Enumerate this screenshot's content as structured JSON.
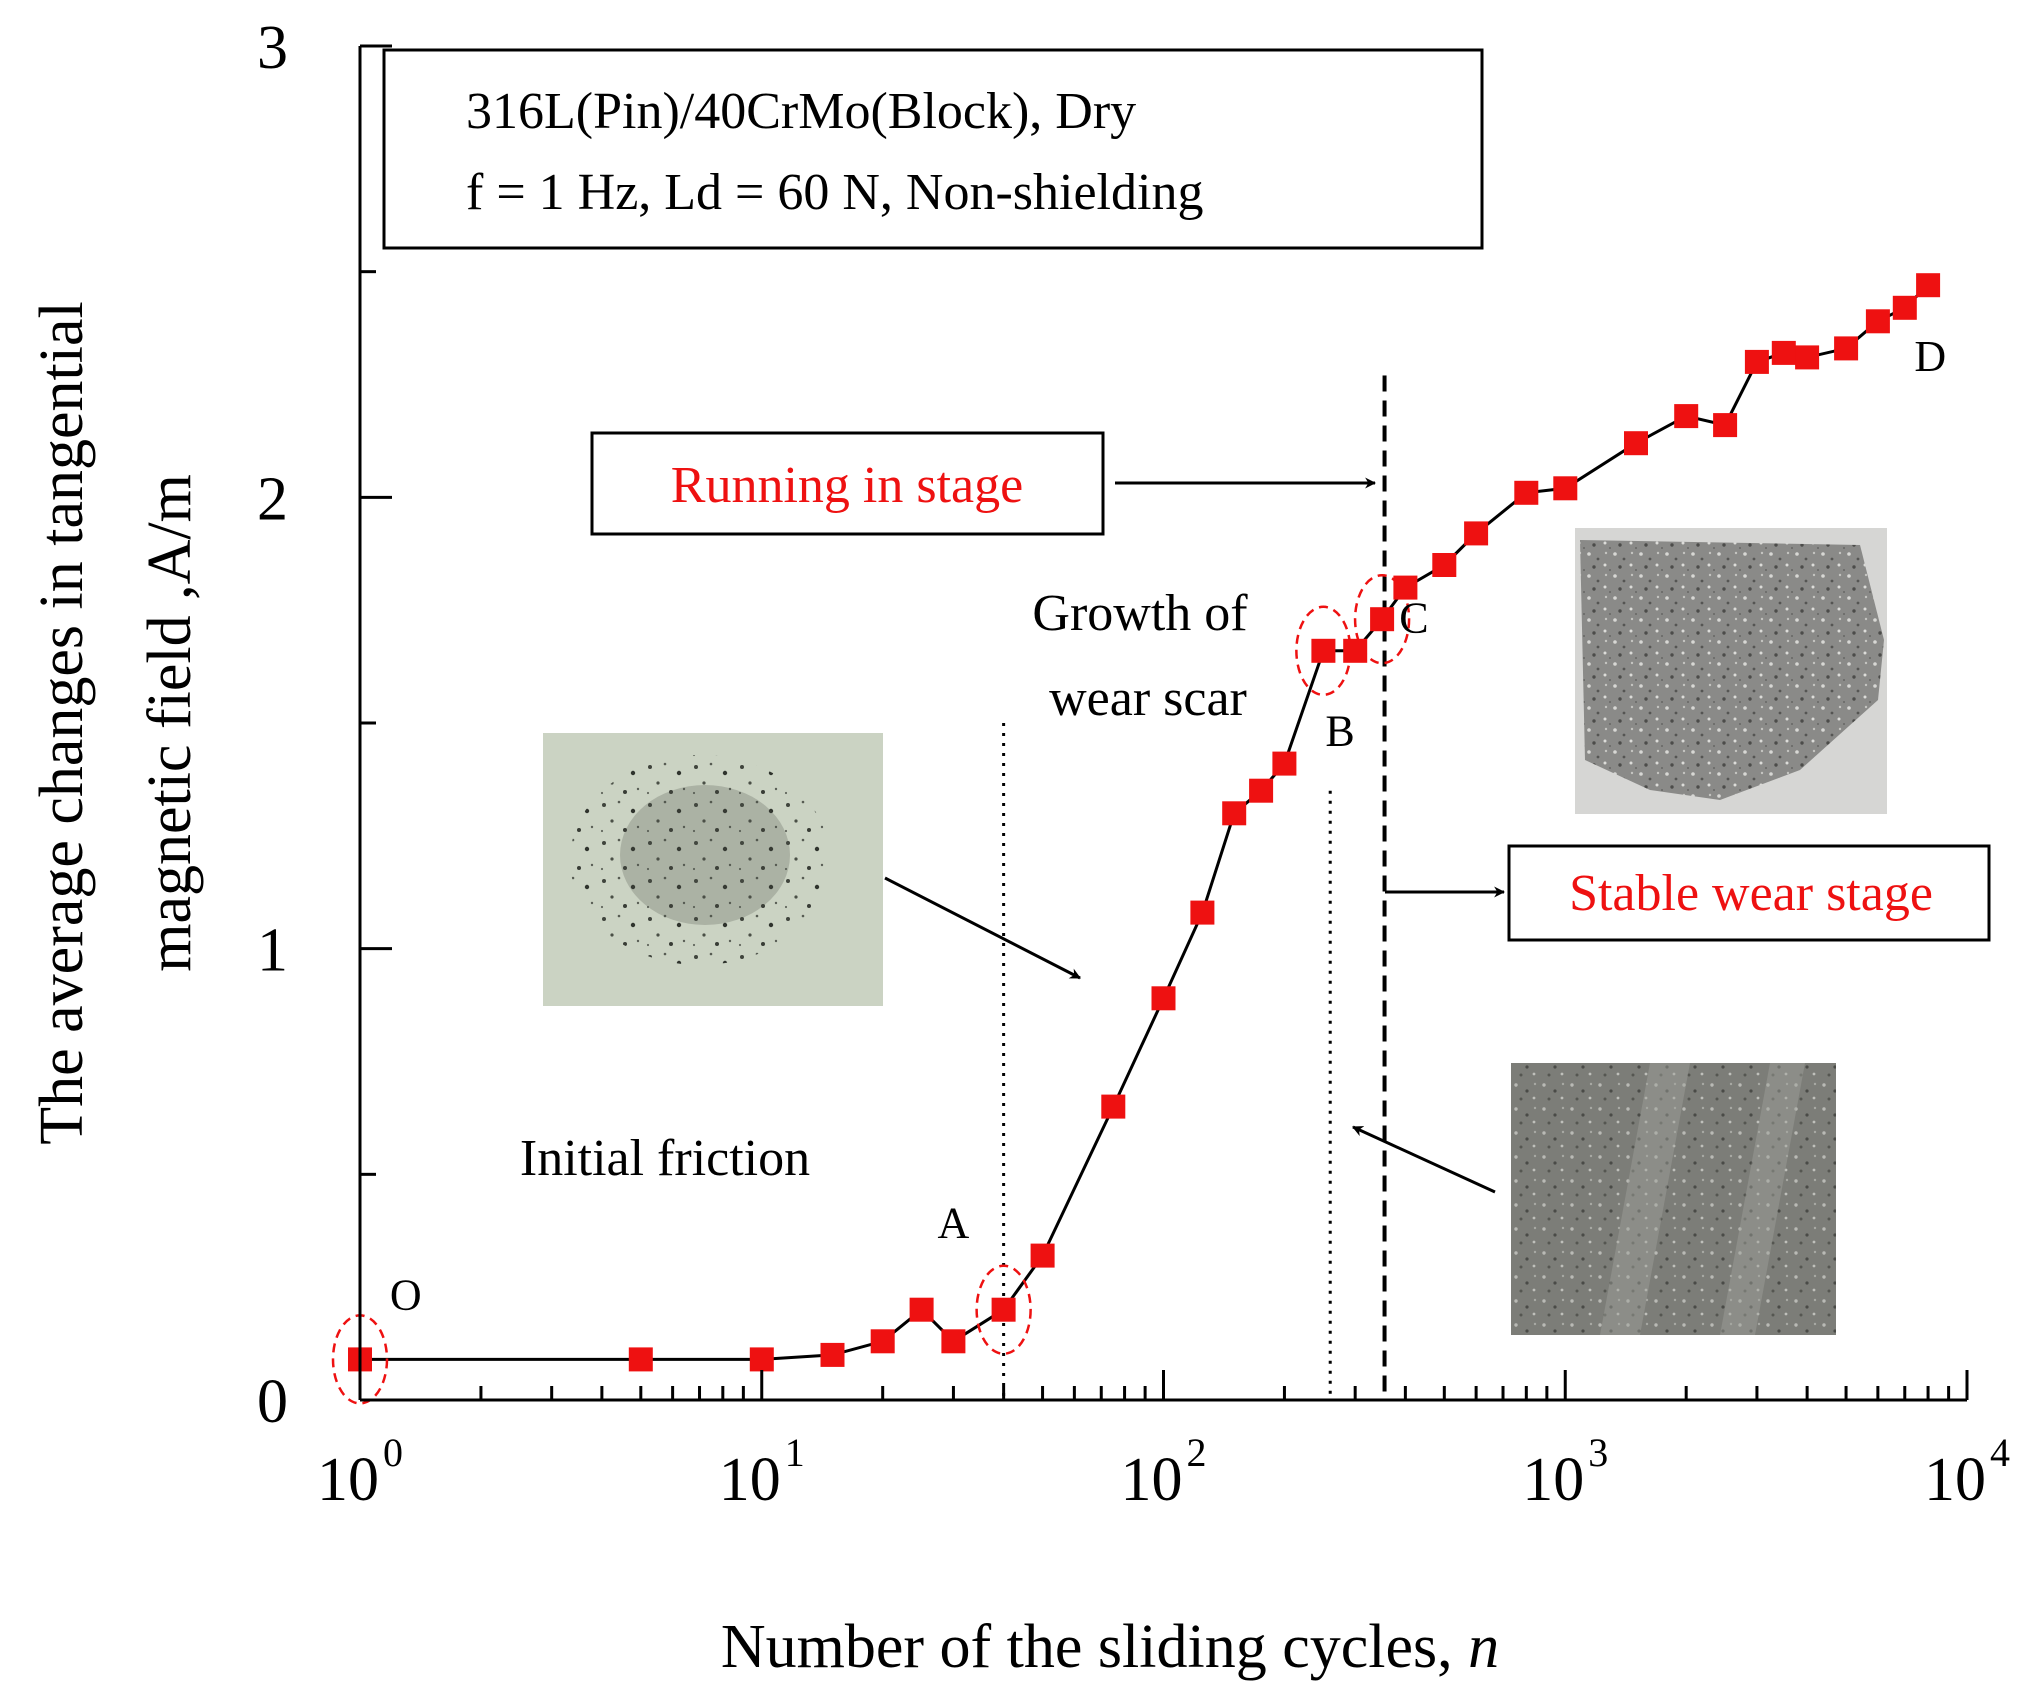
{
  "chart_data": {
    "type": "scatter",
    "xlabel": "Number of the sliding cycles, ",
    "xlabel_var": "n",
    "ylabel_line1": "The average changes in tangential",
    "ylabel_line2": "magnetic field ,A/m",
    "x_scale": "log",
    "xlim": [
      1,
      10000
    ],
    "ylim": [
      0,
      3
    ],
    "x_ticks": [
      {
        "value": 1,
        "base": "10",
        "exp": "0"
      },
      {
        "value": 10,
        "base": "10",
        "exp": "1"
      },
      {
        "value": 100,
        "base": "10",
        "exp": "2"
      },
      {
        "value": 1000,
        "base": "10",
        "exp": "3"
      },
      {
        "value": 10000,
        "base": "10",
        "exp": "4"
      }
    ],
    "y_ticks": [
      {
        "value": 0,
        "label": "0"
      },
      {
        "value": 1,
        "label": "1"
      },
      {
        "value": 2,
        "label": "2"
      },
      {
        "value": 3,
        "label": "3"
      }
    ],
    "y_minor_ticks": [
      0.5,
      1.5,
      2.5
    ],
    "grid": false,
    "marker": "square",
    "marker_color": "#ee1111",
    "line_color": "#000000",
    "series": [
      {
        "x": [
          1,
          5,
          10,
          15,
          20,
          25,
          30,
          40,
          50,
          75,
          100,
          125,
          150,
          175,
          200,
          250,
          300,
          350,
          400,
          500,
          600,
          800,
          1000,
          1500,
          2000,
          2500,
          3000,
          3500,
          4000,
          5000,
          6000,
          7000,
          8000
        ],
        "y": [
          0.09,
          0.09,
          0.09,
          0.1,
          0.13,
          0.2,
          0.13,
          0.2,
          0.32,
          0.65,
          0.89,
          1.08,
          1.3,
          1.35,
          1.41,
          1.66,
          1.66,
          1.73,
          1.8,
          1.85,
          1.92,
          2.01,
          2.02,
          2.12,
          2.18,
          2.16,
          2.3,
          2.32,
          2.31,
          2.33,
          2.39,
          2.42,
          2.47
        ]
      }
    ],
    "point_labels": [
      {
        "text": "O",
        "x": 1.3,
        "y": 0.2
      },
      {
        "text": "A",
        "x": 30,
        "y": 0.36
      },
      {
        "text": "B",
        "x": 275,
        "y": 1.45
      },
      {
        "text": "C",
        "x": 420,
        "y": 1.7
      },
      {
        "text": "D",
        "x": 8100,
        "y": 2.28
      }
    ],
    "highlighted_points": [
      {
        "x": 1,
        "y": 0.09
      },
      {
        "x": 40,
        "y": 0.2
      },
      {
        "x": 250,
        "y": 1.66
      },
      {
        "x": 350,
        "y": 1.73
      }
    ],
    "vertical_lines": [
      {
        "x": 40,
        "style": "dotted",
        "y_top": 1.5
      },
      {
        "x": 260,
        "style": "dotted",
        "y_top": 1.35
      },
      {
        "x": 355,
        "style": "dashed",
        "y_top": 2.27
      }
    ],
    "info_box": {
      "line1": "316L(Pin)/40CrMo(Block), Dry",
      "line2": "f = 1 Hz, Ld = 60 N, Non-shielding"
    },
    "annotations": {
      "running_in": "Running in stage",
      "stable_wear": "Stable wear stage",
      "growth_line1": "Growth of",
      "growth_line2": "wear scar",
      "initial_friction": "Initial friction"
    },
    "annotation_color": "#ee1111"
  }
}
